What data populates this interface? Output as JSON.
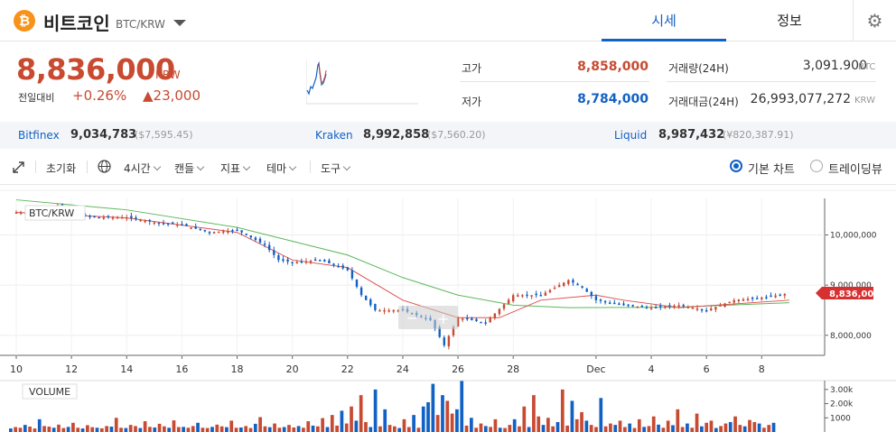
{
  "header": {
    "coin_icon": "₿",
    "coin_name": "비트코인",
    "pair": "BTC/KRW",
    "tabs": [
      {
        "label": "시세",
        "active": true
      },
      {
        "label": "정보",
        "active": false
      }
    ],
    "settings_icon": "gear-icon"
  },
  "price": {
    "current": "8,836,000",
    "unit": "KRW",
    "change_label": "전일대비",
    "change_pct": "+0.26%",
    "change_abs": "▲23,000"
  },
  "stats": {
    "high_label": "고가",
    "high_value": "8,858,000",
    "low_label": "저가",
    "low_value": "8,784,000",
    "volume_label": "거래량(24H)",
    "volume_value": "3,091.900",
    "volume_unit": "BTC",
    "amount_label": "거래대금(24H)",
    "amount_value": "26,993,077,272",
    "amount_unit": "KRW"
  },
  "exchanges": [
    {
      "name": "Bitfinex",
      "price": "9,034,783",
      "usd": "($7,595.45)"
    },
    {
      "name": "Kraken",
      "price": "8,992,858",
      "usd": "($7,560.20)"
    },
    {
      "name": "Liquid",
      "price": "8,987,432",
      "usd": "(¥820,387.91)"
    }
  ],
  "toolbar": {
    "expand_icon": "expand-icon",
    "reset": "초기화",
    "globe_icon": "globe-icon",
    "interval": "4시간",
    "candle": "캔들",
    "indicator": "지표",
    "theme": "테마",
    "tools": "도구",
    "view_basic": "기본 차트",
    "view_tradingview": "트레이딩뷰",
    "selected_view": "기본 차트"
  },
  "colors": {
    "up": "#c84a31",
    "down": "#1261c4",
    "ma_short": "#d9534f",
    "ma_long": "#5cb85c",
    "accent": "#1261c4"
  },
  "chart_data": [
    {
      "type": "candlestick",
      "title": "BTC/KRW",
      "x_ticks": [
        "10",
        "12",
        "14",
        "16",
        "18",
        "20",
        "22",
        "24",
        "26",
        "28",
        "Dec",
        "4",
        "6",
        "8"
      ],
      "y_ticks": [
        "10,000,000",
        "9,000,000",
        "8,000,000"
      ],
      "ylim": [
        7600000,
        10800000
      ],
      "last_price_label": "8,836,000",
      "close_series": [
        {
          "x": 10,
          "y": 10450000
        },
        {
          "x": 11,
          "y": 10450000
        },
        {
          "x": 11.5,
          "y": 10600000
        },
        {
          "x": 12,
          "y": 10400000
        },
        {
          "x": 13,
          "y": 10350000
        },
        {
          "x": 14,
          "y": 10350000
        },
        {
          "x": 15,
          "y": 10250000
        },
        {
          "x": 16,
          "y": 10200000
        },
        {
          "x": 17,
          "y": 10050000
        },
        {
          "x": 18,
          "y": 10100000
        },
        {
          "x": 19,
          "y": 9800000
        },
        {
          "x": 19.5,
          "y": 9500000
        },
        {
          "x": 20,
          "y": 9450000
        },
        {
          "x": 21,
          "y": 9500000
        },
        {
          "x": 22,
          "y": 9300000
        },
        {
          "x": 22.5,
          "y": 8800000
        },
        {
          "x": 23,
          "y": 8500000
        },
        {
          "x": 24,
          "y": 8500000
        },
        {
          "x": 25,
          "y": 8300000
        },
        {
          "x": 25.5,
          "y": 7800000
        },
        {
          "x": 26,
          "y": 8350000
        },
        {
          "x": 27,
          "y": 8250000
        },
        {
          "x": 28,
          "y": 8800000
        },
        {
          "x": 29,
          "y": 8800000
        },
        {
          "x": 30,
          "y": 9100000
        },
        {
          "x": 30.5,
          "y": 8950000
        },
        {
          "x": 31,
          "y": 8700000
        },
        {
          "x": 32,
          "y": 8600000
        },
        {
          "x": 33,
          "y": 8550000
        },
        {
          "x": 34,
          "y": 8600000
        },
        {
          "x": 35,
          "y": 8500000
        },
        {
          "x": 36,
          "y": 8700000
        },
        {
          "x": 37,
          "y": 8750000
        },
        {
          "x": 38,
          "y": 8836000
        }
      ],
      "ma_short": [
        {
          "x": 10,
          "y": 10450000
        },
        {
          "x": 14,
          "y": 10340000
        },
        {
          "x": 18,
          "y": 10050000
        },
        {
          "x": 20,
          "y": 9500000
        },
        {
          "x": 22,
          "y": 9350000
        },
        {
          "x": 24,
          "y": 8700000
        },
        {
          "x": 26,
          "y": 8350000
        },
        {
          "x": 27.5,
          "y": 8350000
        },
        {
          "x": 29,
          "y": 8700000
        },
        {
          "x": 31,
          "y": 8800000
        },
        {
          "x": 32,
          "y": 8700000
        },
        {
          "x": 34,
          "y": 8550000
        },
        {
          "x": 38,
          "y": 8700000
        }
      ],
      "ma_long": [
        {
          "x": 10,
          "y": 10700000
        },
        {
          "x": 14,
          "y": 10500000
        },
        {
          "x": 18,
          "y": 10150000
        },
        {
          "x": 22,
          "y": 9600000
        },
        {
          "x": 24,
          "y": 9150000
        },
        {
          "x": 26,
          "y": 8800000
        },
        {
          "x": 28,
          "y": 8600000
        },
        {
          "x": 30,
          "y": 8550000
        },
        {
          "x": 34,
          "y": 8560000
        },
        {
          "x": 38,
          "y": 8650000
        }
      ]
    },
    {
      "type": "bar",
      "title": "VOLUME",
      "y_ticks": [
        "3.00k",
        "2.00k",
        "1000"
      ],
      "ylim": [
        0,
        3500
      ],
      "values": [
        250,
        350,
        300,
        500,
        380,
        250,
        900,
        420,
        380,
        300,
        520,
        280,
        360,
        650,
        300,
        250,
        480,
        340,
        300,
        260,
        420,
        380,
        1000,
        300,
        280,
        500,
        420,
        280,
        760,
        360,
        320,
        580,
        400,
        300,
        820,
        350,
        360,
        300,
        420,
        650,
        300,
        280,
        360,
        520,
        400,
        340,
        800,
        300,
        320,
        420,
        280,
        580,
        1050,
        400,
        340,
        600,
        300,
        350,
        500,
        320,
        420,
        300,
        760,
        450,
        400,
        980,
        350,
        1200,
        450,
        1500,
        600,
        1800,
        800,
        2600,
        700,
        350,
        3000,
        400,
        1600,
        500,
        400,
        280,
        900,
        350,
        1200,
        300,
        1800,
        2100,
        3400,
        1200,
        2600,
        2200,
        1300,
        1600,
        3600,
        450,
        1000,
        300,
        600,
        420,
        360,
        900,
        300,
        280,
        500,
        900,
        400,
        1800,
        350,
        2600,
        1100,
        500,
        1000,
        400,
        700,
        3000,
        450,
        2200,
        900,
        1400,
        800,
        500,
        350,
        2400,
        400,
        600,
        500,
        800,
        350,
        600,
        280,
        900,
        360,
        420,
        1100,
        520,
        300,
        800,
        480,
        1600,
        350,
        600,
        300,
        1300,
        400,
        650,
        800,
        280,
        420,
        600,
        700,
        1100,
        500,
        400,
        850,
        700,
        600,
        300,
        500,
        650
      ]
    }
  ]
}
